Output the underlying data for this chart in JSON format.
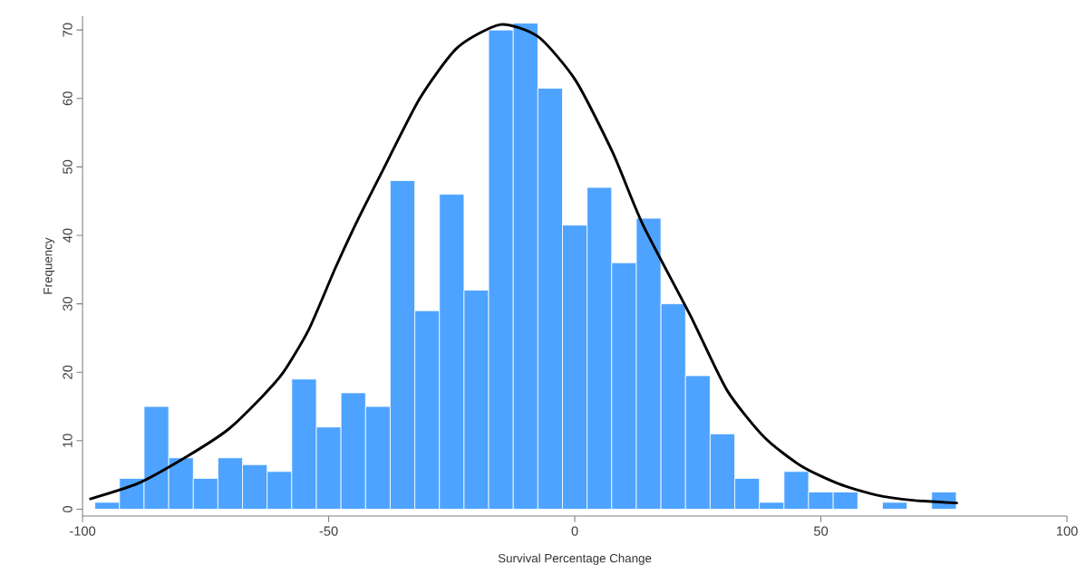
{
  "chart_data": {
    "type": "histogram",
    "xlabel": "Survival Percentage Change",
    "ylabel": "Frequency",
    "bins": [
      -97.5,
      -92.5,
      -87.5,
      -82.5,
      -77.5,
      -72.5,
      -67.5,
      -62.5,
      -57.5,
      -52.5,
      -47.5,
      -42.5,
      -37.5,
      -32.5,
      -27.5,
      -22.5,
      -17.5,
      -12.5,
      -7.5,
      -2.5,
      2.5,
      7.5,
      12.5,
      17.5,
      22.5,
      27.5,
      32.5,
      37.5,
      42.5,
      47.5,
      52.5,
      57.5,
      62.5,
      67.5,
      72.5,
      77.5
    ],
    "values": [
      1,
      4.5,
      15,
      7.5,
      4.5,
      7.5,
      6.5,
      5.5,
      19,
      12,
      17,
      15,
      48,
      29,
      46,
      32,
      70,
      71,
      61.5,
      41.5,
      47,
      36,
      42.5,
      30,
      19.5,
      11,
      4.5,
      1,
      5.5,
      2.5,
      2.5,
      0,
      1,
      0,
      2.5
    ],
    "color": "#4da3ff",
    "series": [
      {
        "type": "line",
        "color": "#000000",
        "x": [
          -98.4,
          -88.6,
          -78.8,
          -70.5,
          -63.7,
          -59.2,
          -54,
          -48.6,
          -44.2,
          -39,
          -31.5,
          -23.9,
          -15.1,
          -7.4,
          0.2,
          7.7,
          13.8,
          23.4,
          30.9,
          38.5,
          46,
          53.6,
          61.1,
          68.7,
          77.6
        ],
        "values": [
          1.5,
          3.8,
          7.7,
          11.6,
          16.3,
          20,
          26.3,
          35.3,
          42.1,
          49.5,
          60,
          67.4,
          70.8,
          69,
          62.6,
          52.1,
          41.6,
          28.4,
          17.4,
          10.5,
          6.3,
          3.7,
          2.1,
          1.3,
          0.9
        ]
      }
    ],
    "xlim": [
      -100,
      100
    ],
    "ylim": [
      -1,
      72
    ],
    "xticks": [
      -100,
      -50,
      0,
      50,
      100
    ],
    "yticks": [
      0,
      10,
      20,
      30,
      40,
      50,
      60,
      70
    ]
  }
}
